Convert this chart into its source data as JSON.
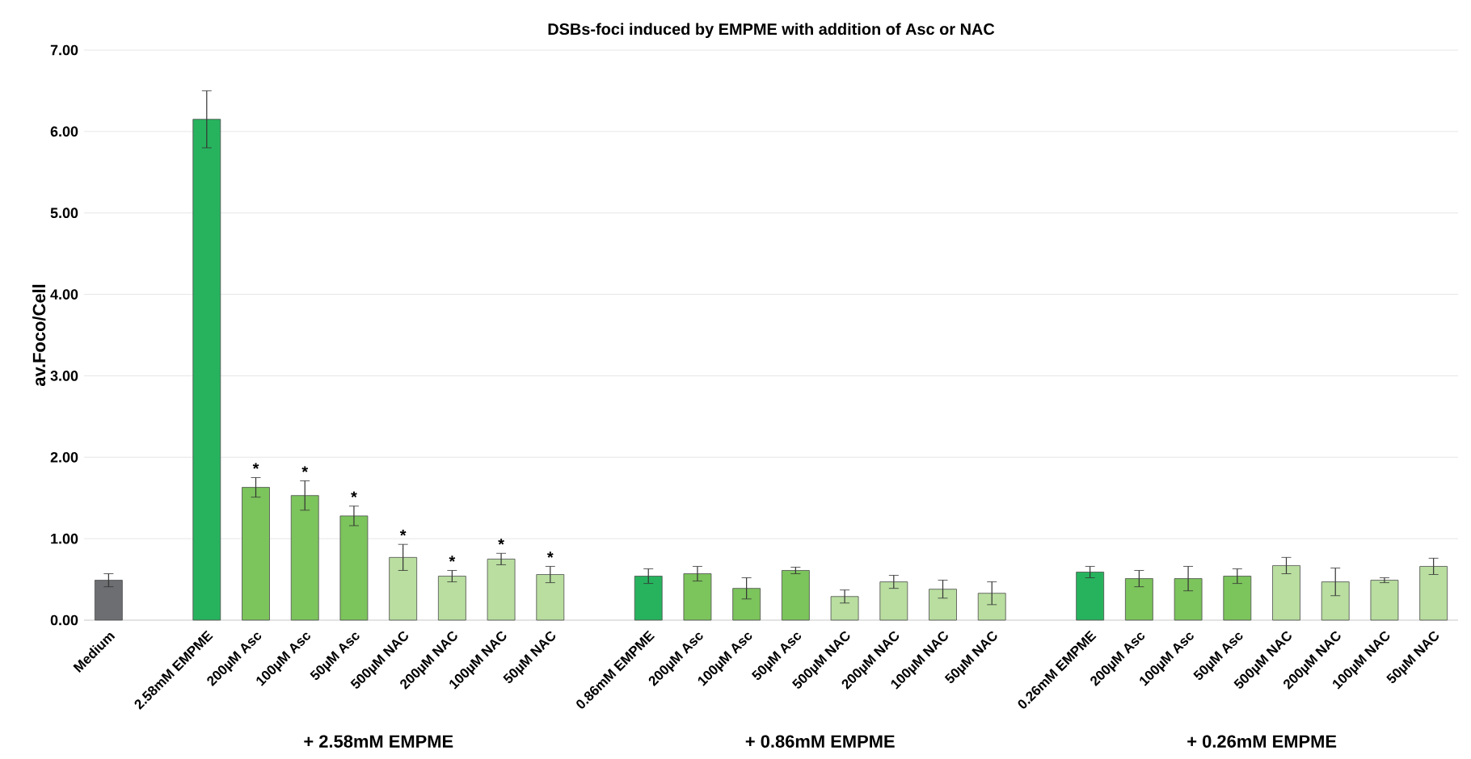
{
  "chart_data": {
    "type": "bar",
    "title": "DSBs-foci induced by EMPME with addition of Asc or NAC",
    "ylabel": "av.Foco/Cell",
    "categories": [
      "Medium",
      null,
      "2.58mM EMPME",
      "200µM Asc",
      "100µM Asc",
      "50µM Asc",
      "500µM NAC",
      "200µM NAC",
      "100µM NAC",
      "50µM NAC",
      null,
      "0.86mM EMPME",
      "200µM Asc",
      "100µM Asc",
      "50µM Asc",
      "500µM NAC",
      "200µM NAC",
      "100µM NAC",
      "50µM NAC",
      null,
      "0.26mM EMPME",
      "200µM Asc",
      "100µM Asc",
      "50µM Asc",
      "500µM NAC",
      "200µM NAC",
      "100µM NAC",
      "50µM NAC"
    ],
    "values": [
      0.49,
      null,
      6.15,
      1.63,
      1.53,
      1.28,
      0.77,
      0.54,
      0.75,
      0.56,
      null,
      0.54,
      0.57,
      0.39,
      0.61,
      0.29,
      0.47,
      0.38,
      0.33,
      null,
      0.59,
      0.51,
      0.51,
      0.54,
      0.67,
      0.47,
      0.49,
      0.66
    ],
    "errors": [
      0.08,
      null,
      0.35,
      0.12,
      0.18,
      0.12,
      0.16,
      0.07,
      0.07,
      0.1,
      null,
      0.09,
      0.09,
      0.13,
      0.04,
      0.08,
      0.08,
      0.11,
      0.14,
      null,
      0.07,
      0.1,
      0.15,
      0.09,
      0.1,
      0.17,
      0.03,
      0.1
    ],
    "colors": [
      "#6d6e71",
      null,
      "#27b35e",
      "#7cc45c",
      "#7cc45c",
      "#7cc45c",
      "#b9dea0",
      "#b9dea0",
      "#b9dea0",
      "#b9dea0",
      null,
      "#27b35e",
      "#7cc45c",
      "#7cc45c",
      "#7cc45c",
      "#b9dea0",
      "#b9dea0",
      "#b9dea0",
      "#b9dea0",
      null,
      "#27b35e",
      "#7cc45c",
      "#7cc45c",
      "#7cc45c",
      "#b9dea0",
      "#b9dea0",
      "#b9dea0",
      "#b9dea0"
    ],
    "value_labels": [
      null,
      null,
      null,
      "*",
      "*",
      "*",
      "*",
      "*",
      "*",
      "*",
      null,
      null,
      null,
      null,
      null,
      null,
      null,
      null,
      null,
      null,
      null,
      null,
      null,
      null,
      null,
      null,
      null,
      null
    ],
    "annotations": [
      "+ 2.58mM EMPME",
      "+ 0.86mM EMPME",
      "+ 0.26mM EMPME"
    ],
    "ylim": [
      0,
      7
    ],
    "yticks": [
      {
        "value": 0,
        "label": "0.00"
      },
      {
        "value": 1,
        "label": "1.00"
      },
      {
        "value": 2,
        "label": "2.00"
      },
      {
        "value": 3,
        "label": "3.00"
      },
      {
        "value": 4,
        "label": "4.00"
      },
      {
        "value": 5,
        "label": "5.00"
      },
      {
        "value": 6,
        "label": "6.00"
      },
      {
        "value": 7,
        "label": "7.00"
      }
    ],
    "grid": "y"
  }
}
